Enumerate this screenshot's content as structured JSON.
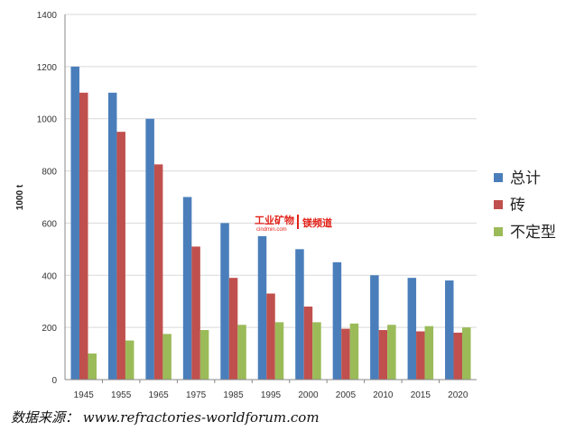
{
  "chart_data": {
    "type": "bar",
    "title": "",
    "xlabel": "",
    "ylabel": "1000 t",
    "ylim": [
      0,
      1400
    ],
    "yticks": [
      0,
      200,
      400,
      600,
      800,
      1000,
      1200,
      1400
    ],
    "grid": true,
    "legend_position": "right",
    "categories": [
      "1945",
      "1955",
      "1965",
      "1975",
      "1985",
      "1995",
      "2000",
      "2005",
      "2010",
      "2015",
      "2020"
    ],
    "series": [
      {
        "name": "总计",
        "color": "#4a7ebb",
        "values": [
          1200,
          1100,
          1000,
          700,
          600,
          550,
          500,
          450,
          400,
          390,
          380
        ]
      },
      {
        "name": "砖",
        "color": "#c0504d",
        "values": [
          1100,
          950,
          825,
          510,
          390,
          330,
          280,
          195,
          190,
          185,
          180
        ]
      },
      {
        "name": "不定型",
        "color": "#9bbb59",
        "values": [
          100,
          150,
          175,
          190,
          210,
          220,
          220,
          215,
          210,
          205,
          200
        ]
      }
    ]
  },
  "watermark": {
    "cn_left": "工业矿物",
    "cn_right": "镁频道",
    "url": "cindmin.com"
  },
  "source_text": "数据来源：  www.refractories-worldforum.com"
}
